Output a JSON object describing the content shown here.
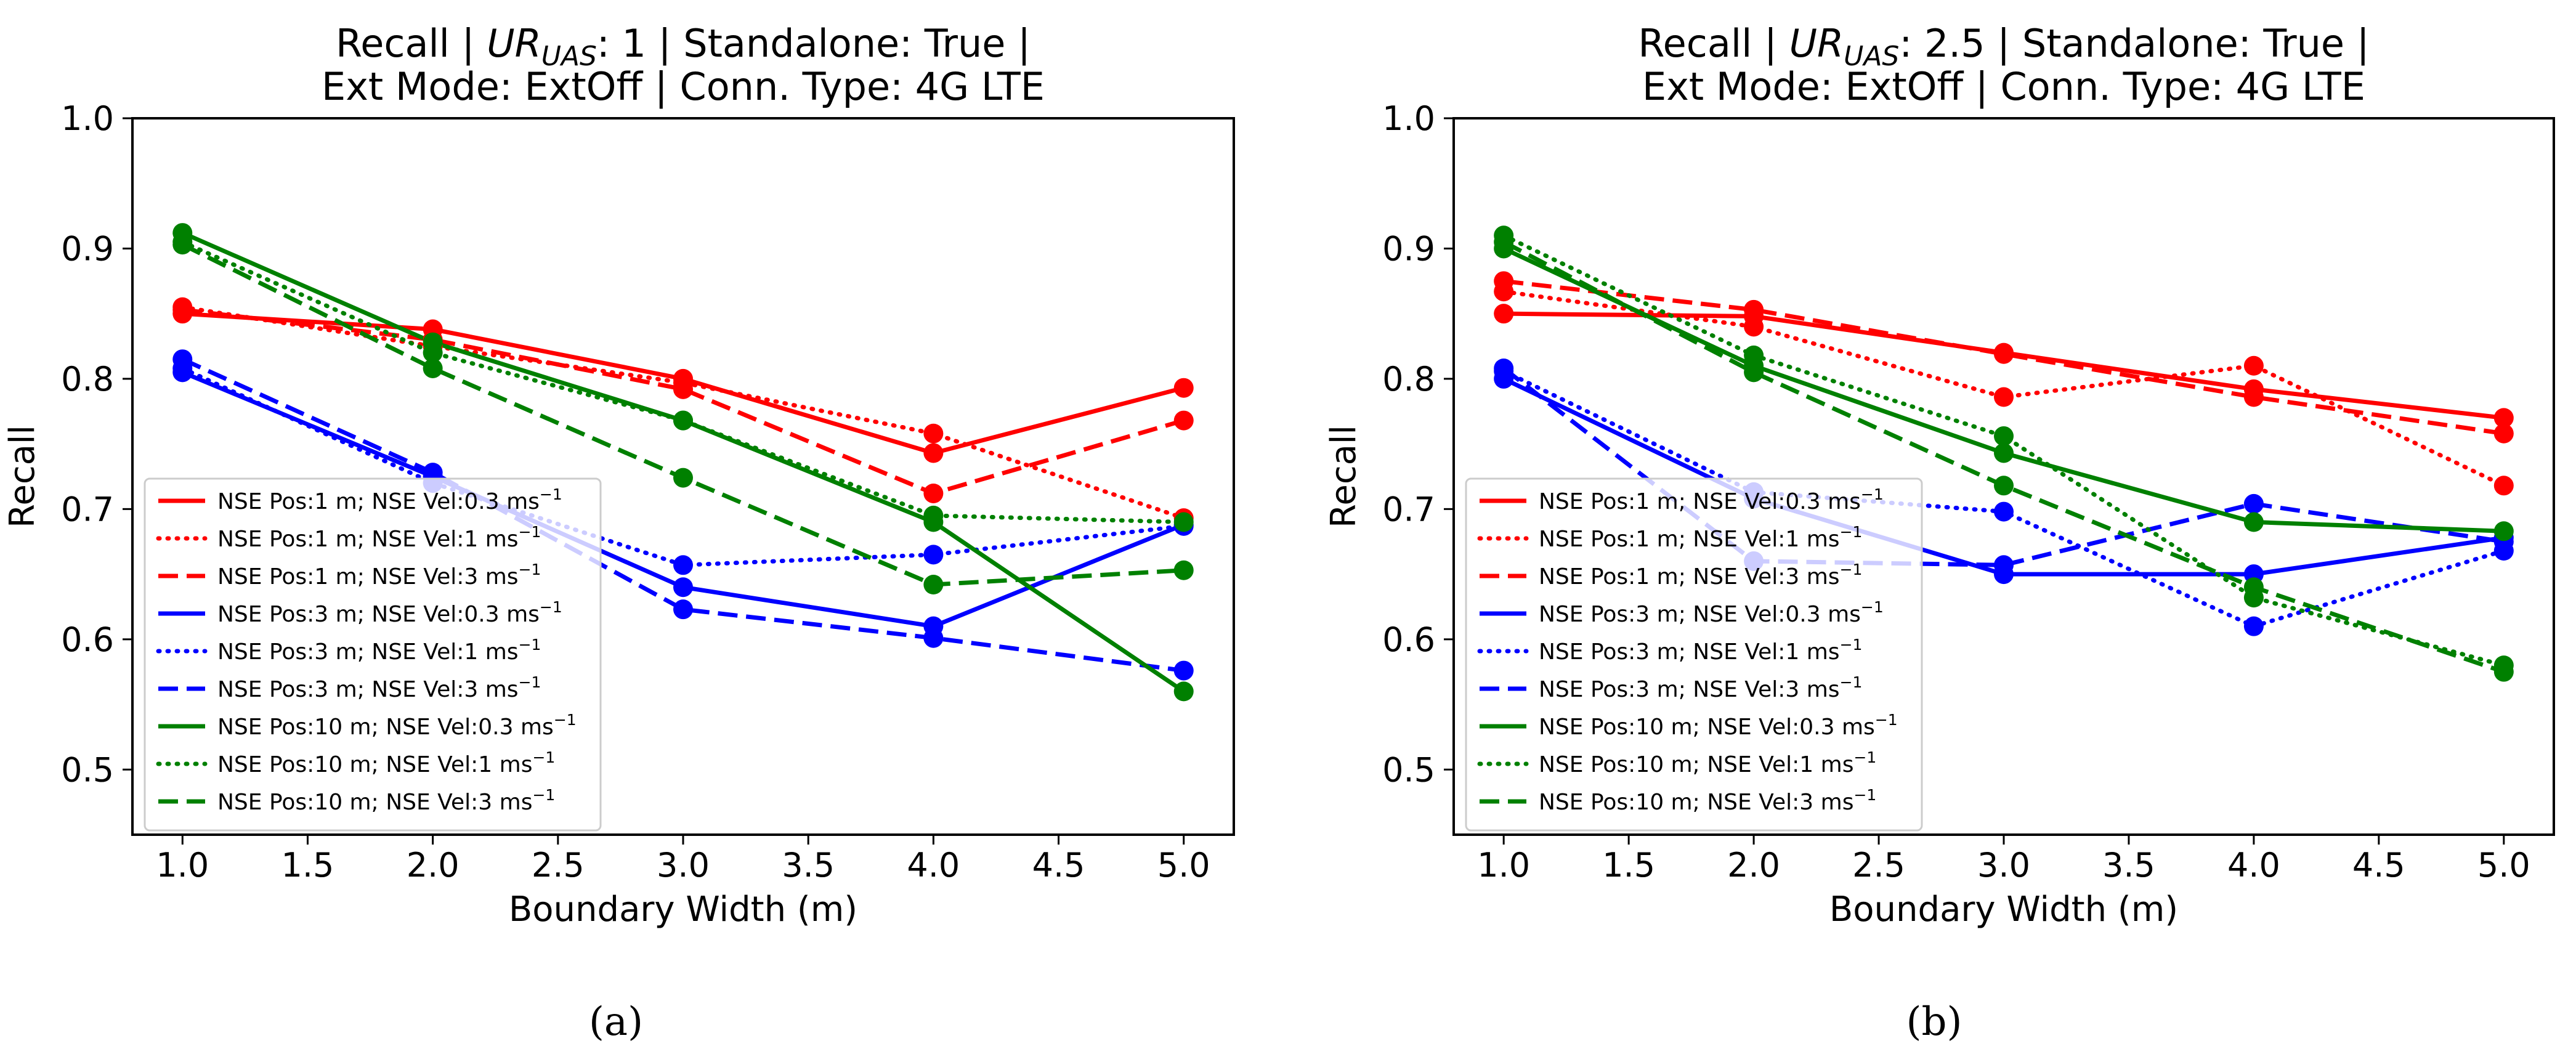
{
  "chart_data": [
    {
      "type": "line",
      "title_prefix": "Recall | ",
      "title_ur": "UR",
      "title_sub": "UAS",
      "title_mid": ": 1 | Standalone: True |",
      "title_line2": "Ext Mode: ExtOff | Conn. Type: 4G LTE",
      "xlabel": "Boundary  Width (m)",
      "ylabel": "Recall",
      "xlim": [
        0.8,
        5.2
      ],
      "ylim": [
        0.45,
        1.0
      ],
      "xticks": [
        "1.0",
        "1.5",
        "2.0",
        "2.5",
        "3.0",
        "3.5",
        "4.0",
        "4.5",
        "5.0"
      ],
      "yticks": [
        "0.5",
        "0.6",
        "0.7",
        "0.8",
        "0.9",
        "1.0"
      ],
      "legend_position": "bottom-left",
      "caption": "(a)",
      "x": [
        1,
        2,
        3,
        4,
        5
      ],
      "series": [
        {
          "name": "NSE Pos:1 m; NSE Vel:0.3 ms",
          "unit_exp": "−1",
          "color": "#ff0000",
          "dash": "solid",
          "values": [
            0.85,
            0.838,
            0.8,
            0.743,
            0.793
          ]
        },
        {
          "name": "NSE Pos:1 m; NSE Vel:1 ms",
          "unit_exp": "−1",
          "color": "#ff0000",
          "dash": "dotted",
          "values": [
            0.855,
            0.825,
            0.797,
            0.758,
            0.693
          ]
        },
        {
          "name": "NSE Pos:1 m; NSE Vel:3 ms",
          "unit_exp": "−1",
          "color": "#ff0000",
          "dash": "dashed",
          "values": [
            0.853,
            0.83,
            0.792,
            0.712,
            0.768
          ]
        },
        {
          "name": "NSE Pos:3 m; NSE Vel:0.3 ms",
          "unit_exp": "−1",
          "color": "#0000ff",
          "dash": "solid",
          "values": [
            0.805,
            0.725,
            0.64,
            0.61,
            0.688
          ]
        },
        {
          "name": "NSE Pos:3 m; NSE Vel:1 ms",
          "unit_exp": "−1",
          "color": "#0000ff",
          "dash": "dotted",
          "values": [
            0.808,
            0.72,
            0.657,
            0.665,
            0.687
          ]
        },
        {
          "name": "NSE Pos:3 m; NSE Vel:3 ms",
          "unit_exp": "−1",
          "color": "#0000ff",
          "dash": "dashed",
          "values": [
            0.815,
            0.728,
            0.623,
            0.601,
            0.576
          ]
        },
        {
          "name": "NSE Pos:10 m; NSE Vel:0.3 ms",
          "unit_exp": "−1",
          "color": "#008000",
          "dash": "solid",
          "values": [
            0.912,
            0.828,
            0.768,
            0.69,
            0.56
          ]
        },
        {
          "name": "NSE Pos:10 m; NSE Vel:1 ms",
          "unit_exp": "−1",
          "color": "#008000",
          "dash": "dotted",
          "values": [
            0.905,
            0.82,
            0.768,
            0.695,
            0.69
          ]
        },
        {
          "name": "NSE Pos:10 m; NSE Vel:3 ms",
          "unit_exp": "−1",
          "color": "#008000",
          "dash": "dashed",
          "values": [
            0.903,
            0.808,
            0.724,
            0.642,
            0.653
          ]
        }
      ]
    },
    {
      "type": "line",
      "title_prefix": "Recall | ",
      "title_ur": "UR",
      "title_sub": "UAS",
      "title_mid": ": 2.5 | Standalone: True |",
      "title_line2": "Ext Mode: ExtOff | Conn. Type: 4G LTE",
      "xlabel": "Boundary  Width (m)",
      "ylabel": "Recall",
      "xlim": [
        0.8,
        5.2
      ],
      "ylim": [
        0.45,
        1.0
      ],
      "xticks": [
        "1.0",
        "1.5",
        "2.0",
        "2.5",
        "3.0",
        "3.5",
        "4.0",
        "4.5",
        "5.0"
      ],
      "yticks": [
        "0.5",
        "0.6",
        "0.7",
        "0.8",
        "0.9",
        "1.0"
      ],
      "legend_position": "bottom-left",
      "caption": "(b)",
      "x": [
        1,
        2,
        3,
        4,
        5
      ],
      "series": [
        {
          "name": "NSE Pos:1 m; NSE Vel:0.3 ms",
          "unit_exp": "−1",
          "color": "#ff0000",
          "dash": "solid",
          "values": [
            0.85,
            0.848,
            0.82,
            0.792,
            0.77
          ]
        },
        {
          "name": "NSE Pos:1 m; NSE Vel:1 ms",
          "unit_exp": "−1",
          "color": "#ff0000",
          "dash": "dotted",
          "values": [
            0.867,
            0.84,
            0.786,
            0.81,
            0.718
          ]
        },
        {
          "name": "NSE Pos:1 m; NSE Vel:3 ms",
          "unit_exp": "−1",
          "color": "#ff0000",
          "dash": "dashed",
          "values": [
            0.875,
            0.853,
            0.819,
            0.786,
            0.758
          ]
        },
        {
          "name": "NSE Pos:3 m; NSE Vel:0.3 ms",
          "unit_exp": "−1",
          "color": "#0000ff",
          "dash": "solid",
          "values": [
            0.8,
            0.708,
            0.65,
            0.65,
            0.678
          ]
        },
        {
          "name": "NSE Pos:3 m; NSE Vel:1 ms",
          "unit_exp": "−1",
          "color": "#0000ff",
          "dash": "dotted",
          "values": [
            0.806,
            0.713,
            0.698,
            0.61,
            0.668
          ]
        },
        {
          "name": "NSE Pos:3 m; NSE Vel:3 ms",
          "unit_exp": "−1",
          "color": "#0000ff",
          "dash": "dashed",
          "values": [
            0.808,
            0.66,
            0.657,
            0.704,
            0.675
          ]
        },
        {
          "name": "NSE Pos:10 m; NSE Vel:0.3 ms",
          "unit_exp": "−1",
          "color": "#008000",
          "dash": "solid",
          "values": [
            0.9,
            0.81,
            0.743,
            0.69,
            0.683
          ]
        },
        {
          "name": "NSE Pos:10 m; NSE Vel:1 ms",
          "unit_exp": "−1",
          "color": "#008000",
          "dash": "dotted",
          "values": [
            0.91,
            0.818,
            0.756,
            0.632,
            0.58
          ]
        },
        {
          "name": "NSE Pos:10 m; NSE Vel:3 ms",
          "unit_exp": "−1",
          "color": "#008000",
          "dash": "dashed",
          "values": [
            0.905,
            0.805,
            0.718,
            0.64,
            0.575
          ]
        }
      ]
    }
  ]
}
